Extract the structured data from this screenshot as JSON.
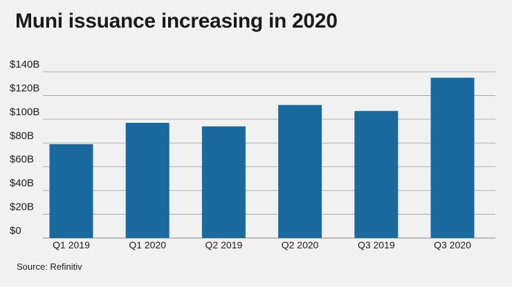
{
  "chart_data": {
    "type": "bar",
    "title": "Muni issuance increasing in 2020",
    "categories": [
      "Q1 2019",
      "Q1 2020",
      "Q2 2019",
      "Q2 2020",
      "Q3 2019",
      "Q3 2020"
    ],
    "values": [
      79,
      97,
      94,
      112,
      107,
      135
    ],
    "unit": "billions of dollars",
    "ylim": [
      0,
      140
    ],
    "yticks": [
      0,
      20,
      40,
      60,
      80,
      100,
      120,
      140
    ],
    "ytick_labels": [
      "$0",
      "$20B",
      "$40B",
      "$60B",
      "$80B",
      "$100B",
      "$120B",
      "$140B"
    ],
    "xlabel": "",
    "ylabel": "",
    "grid": "horizontal",
    "bar_color": "#1a6aa0",
    "grid_color": "#9a9a9a"
  },
  "source": "Source: Refinitiv"
}
